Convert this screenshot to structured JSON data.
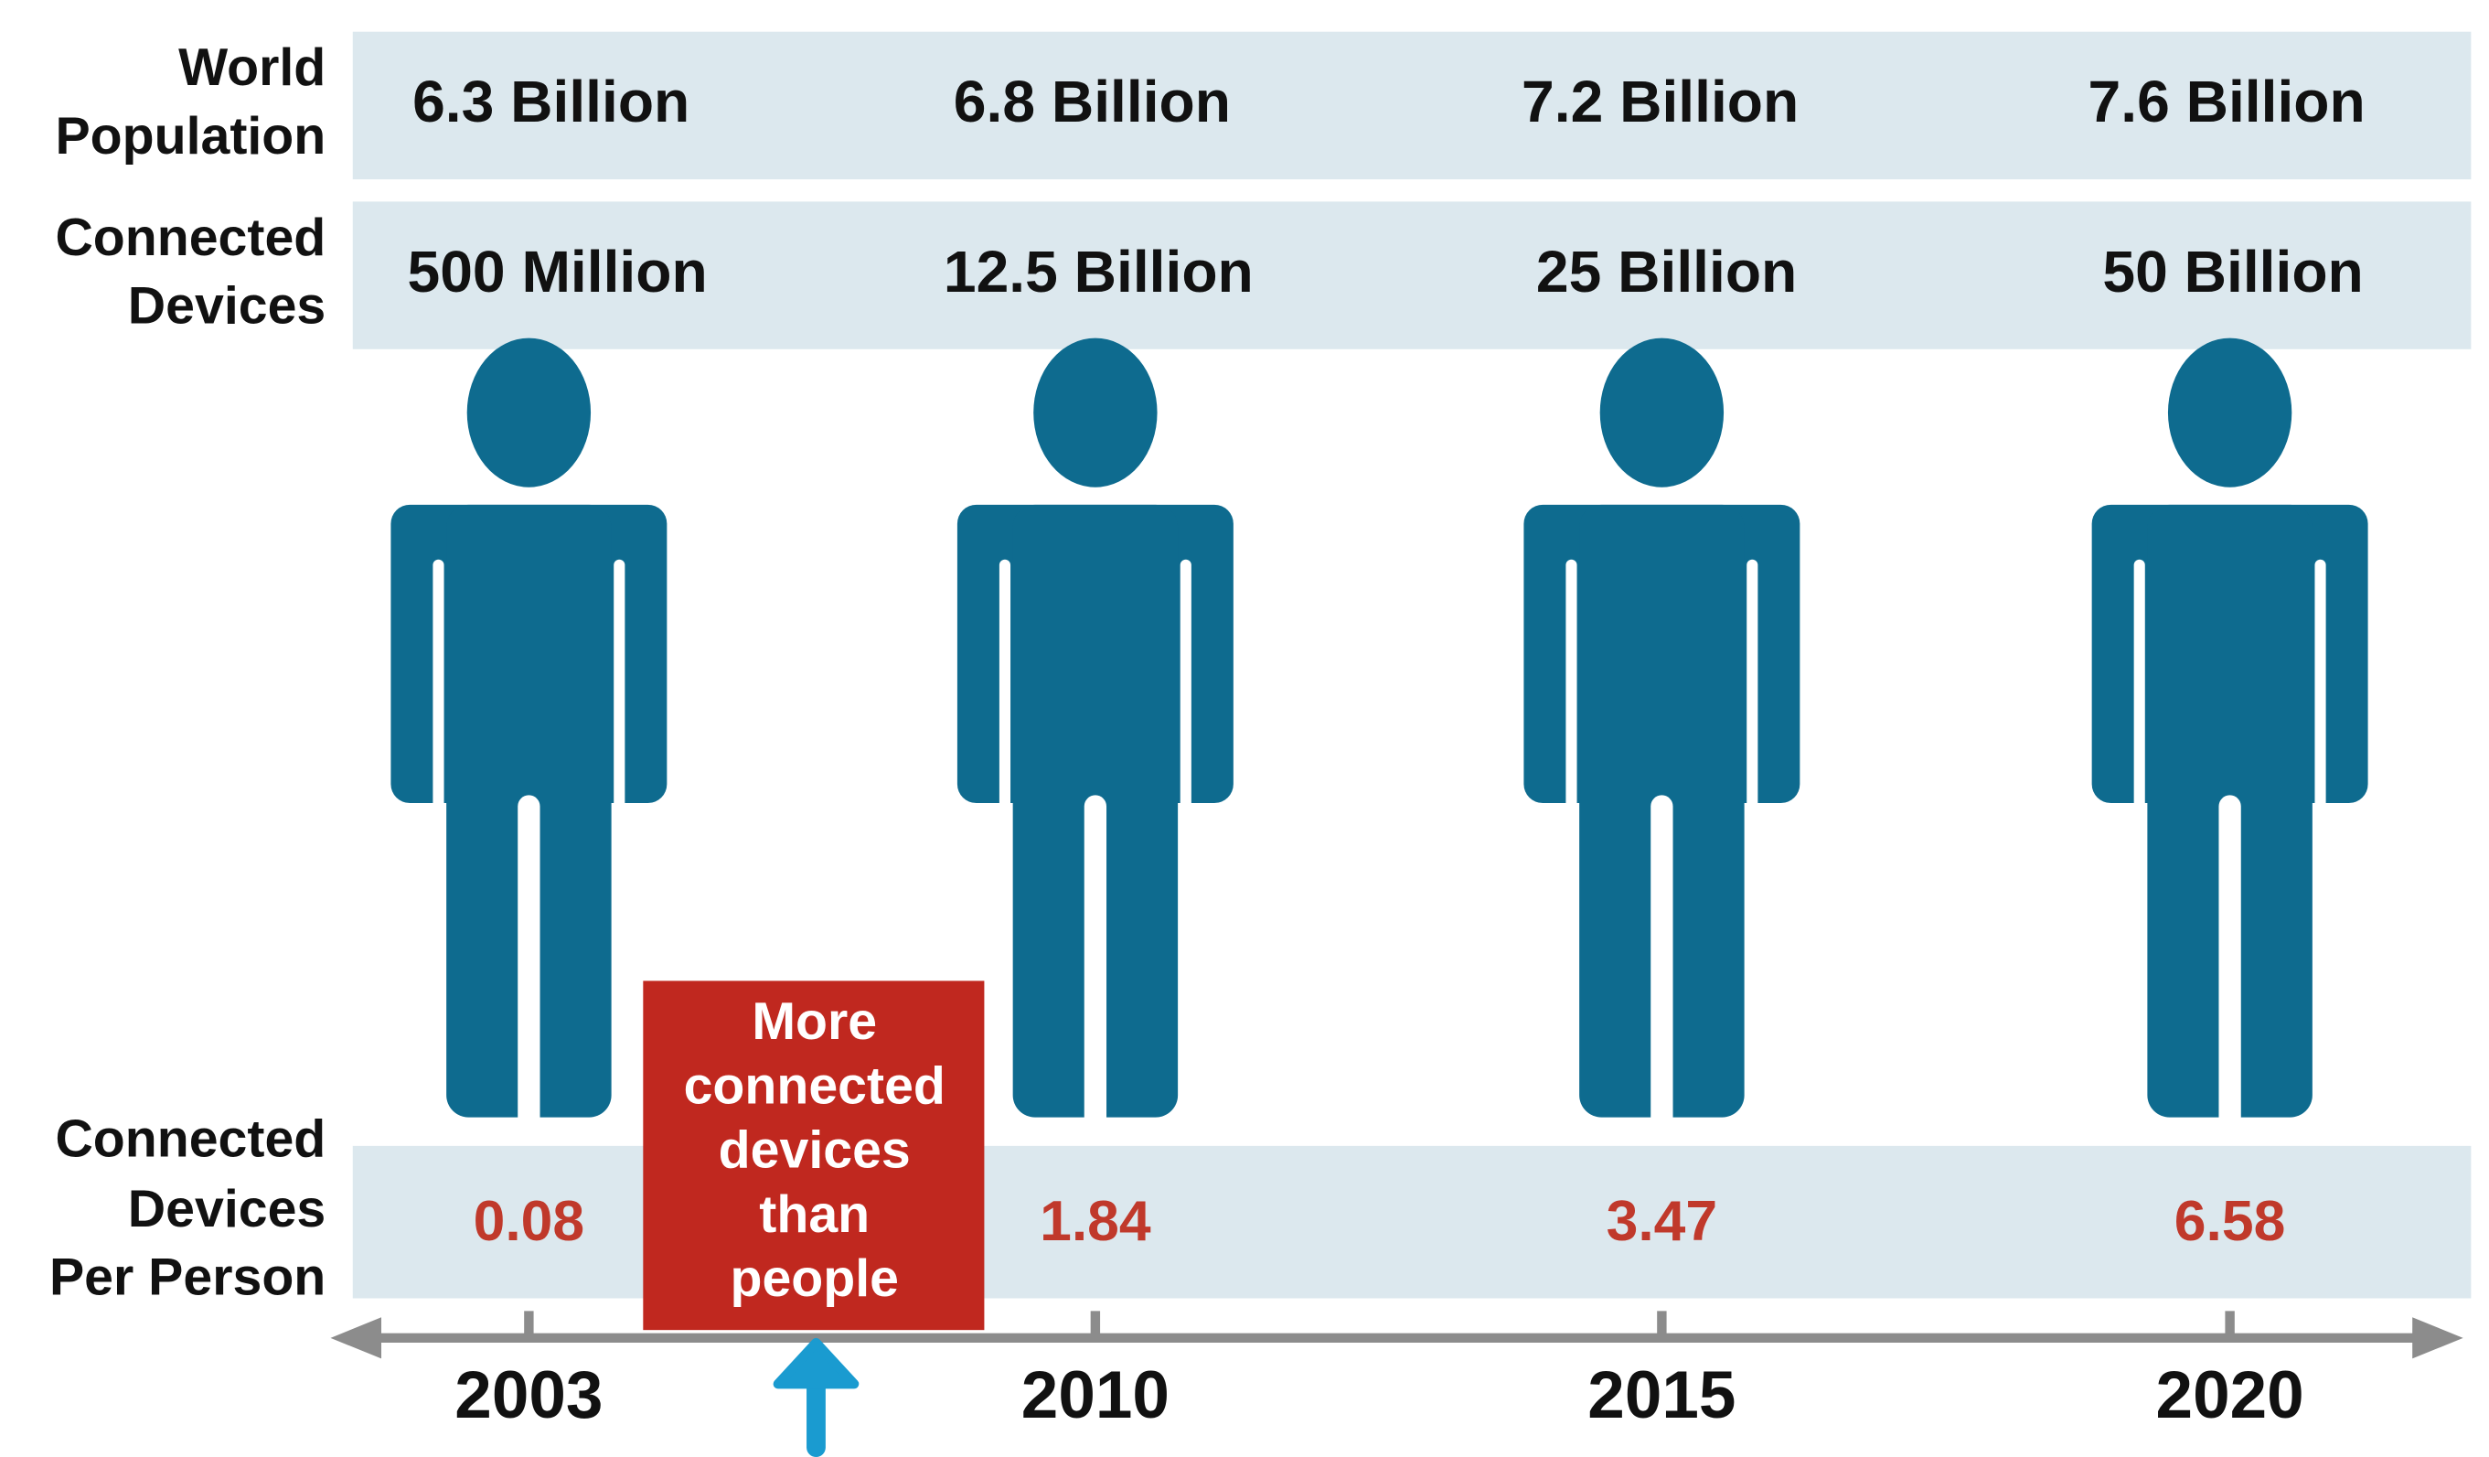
{
  "rows": [
    {
      "label": [
        "World",
        "Population"
      ]
    },
    {
      "label": [
        "Connected",
        "Devices"
      ]
    },
    {
      "label": [
        "Connected",
        "Devices",
        "Per Person"
      ]
    }
  ],
  "columns": [
    {
      "year": "2003",
      "population": "6.3 Billion",
      "devices": "500 Million",
      "per_person": "0.08"
    },
    {
      "year": "2010",
      "population": "6.8 Billion",
      "devices": "12.5 Billion",
      "per_person": "1.84"
    },
    {
      "year": "2015",
      "population": "7.2 Billion",
      "devices": "25 Billion",
      "per_person": "3.47"
    },
    {
      "year": "2020",
      "population": "7.6 Billion",
      "devices": "50 Billion",
      "per_person": "6.58"
    }
  ],
  "callout": [
    "More",
    "connected",
    "devices",
    "than",
    "people"
  ]
}
